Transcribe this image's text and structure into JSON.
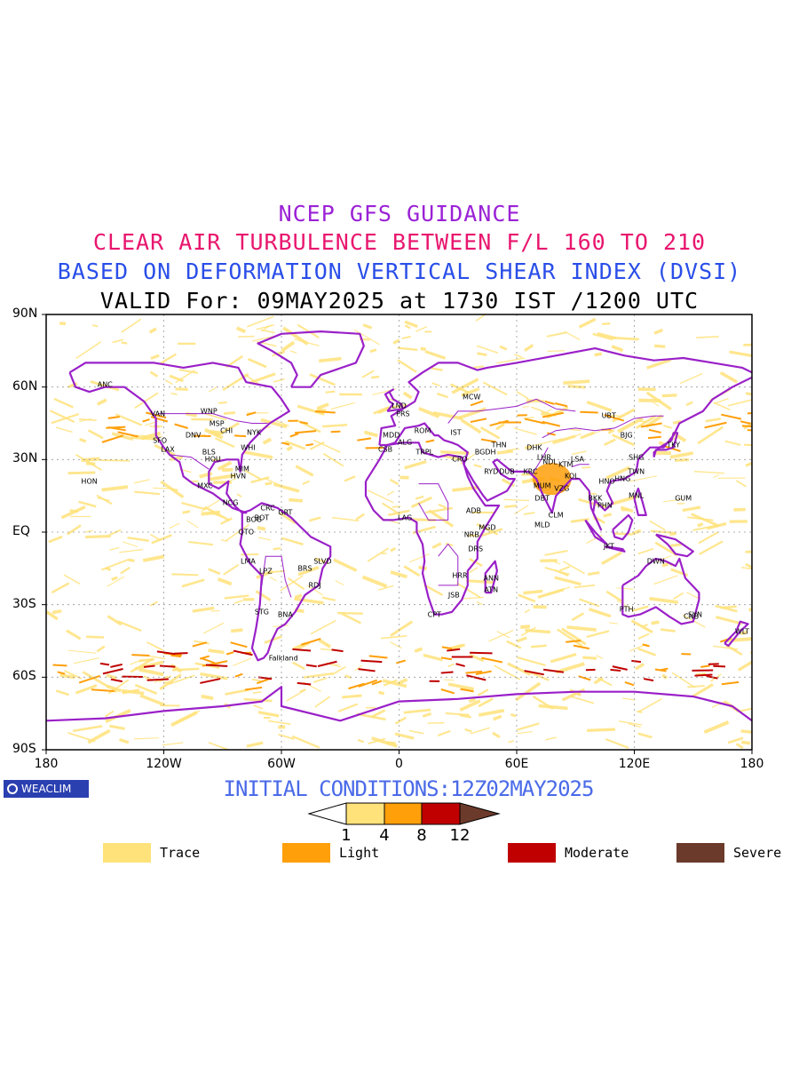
{
  "titles": {
    "line1": "NCEP GFS GUIDANCE",
    "line2": "CLEAR AIR TURBULENCE BETWEEN F/L 160 TO 210",
    "line3": "BASED ON DEFORMATION VERTICAL SHEAR INDEX (DVSI)",
    "line4": "VALID For: 09MAY2025 at 1730 IST /1200 UTC"
  },
  "colors": {
    "line1": "#9b22d6",
    "line2": "#e8166e",
    "line3": "#2a4ee8",
    "line4": "#000000",
    "init": "#4a6ae8",
    "coast": "#9a20c8",
    "trace": "#ffe27a",
    "light": "#ff9f0a",
    "moderate": "#c00000",
    "severe": "#6b3a2a"
  },
  "lat_labels": [
    "90N",
    "60N",
    "30N",
    "EQ",
    "30S",
    "60S",
    "90S"
  ],
  "lon_labels": [
    "180",
    "120W",
    "60W",
    "0",
    "60E",
    "120E",
    "180"
  ],
  "initial_conditions": "INITIAL CONDITIONS:12Z02MAY2025",
  "logo_text": "WEACLIM",
  "colorbar_ticks": [
    "1",
    "4",
    "8",
    "12"
  ],
  "legend": [
    {
      "label": "Trace",
      "color": "#ffe27a"
    },
    {
      "label": "Light",
      "color": "#ff9f0a"
    },
    {
      "label": "Moderate",
      "color": "#c00000"
    },
    {
      "label": "Severe",
      "color": "#6b3a2a"
    }
  ],
  "cities": [
    {
      "name": "ANC",
      "lon": -150,
      "lat": 61
    },
    {
      "name": "VAN",
      "lon": -123,
      "lat": 49
    },
    {
      "name": "WNP",
      "lon": -97,
      "lat": 50
    },
    {
      "name": "SFO",
      "lon": -122,
      "lat": 38
    },
    {
      "name": "LAX",
      "lon": -118,
      "lat": 34
    },
    {
      "name": "DNV",
      "lon": -105,
      "lat": 40
    },
    {
      "name": "CHI",
      "lon": -88,
      "lat": 42
    },
    {
      "name": "NYK",
      "lon": -74,
      "lat": 41
    },
    {
      "name": "MSP",
      "lon": -93,
      "lat": 45
    },
    {
      "name": "BLS",
      "lon": -97,
      "lat": 33
    },
    {
      "name": "HOU",
      "lon": -95,
      "lat": 30
    },
    {
      "name": "WHI",
      "lon": -77,
      "lat": 35
    },
    {
      "name": "MIM",
      "lon": -80,
      "lat": 26
    },
    {
      "name": "HVN",
      "lon": -82,
      "lat": 23
    },
    {
      "name": "MXC",
      "lon": -99,
      "lat": 19
    },
    {
      "name": "HON",
      "lon": -158,
      "lat": 21
    },
    {
      "name": "NCG",
      "lon": -86,
      "lat": 12
    },
    {
      "name": "CRC",
      "lon": -67,
      "lat": 10
    },
    {
      "name": "BOG",
      "lon": -74,
      "lat": 5
    },
    {
      "name": "BOT",
      "lon": -70,
      "lat": 6
    },
    {
      "name": "GRT",
      "lon": -58,
      "lat": 8
    },
    {
      "name": "QTO",
      "lon": -78,
      "lat": 0
    },
    {
      "name": "LMA",
      "lon": -77,
      "lat": -12
    },
    {
      "name": "LPZ",
      "lon": -68,
      "lat": -16
    },
    {
      "name": "BRS",
      "lon": -48,
      "lat": -15
    },
    {
      "name": "SLVD",
      "lon": -39,
      "lat": -12
    },
    {
      "name": "RDJ",
      "lon": -43,
      "lat": -22
    },
    {
      "name": "STG",
      "lon": -70,
      "lat": -33
    },
    {
      "name": "BNA",
      "lon": -58,
      "lat": -34
    },
    {
      "name": "Falkland",
      "lon": -59,
      "lat": -52
    },
    {
      "name": "LND",
      "lon": 0,
      "lat": 52
    },
    {
      "name": "PRS",
      "lon": 2,
      "lat": 49
    },
    {
      "name": "MDD",
      "lon": -4,
      "lat": 40
    },
    {
      "name": "ALG",
      "lon": 3,
      "lat": 37
    },
    {
      "name": "CSB",
      "lon": -7,
      "lat": 34
    },
    {
      "name": "ROM",
      "lon": 12,
      "lat": 42
    },
    {
      "name": "TRPL",
      "lon": 13,
      "lat": 33
    },
    {
      "name": "IST",
      "lon": 29,
      "lat": 41
    },
    {
      "name": "MCW",
      "lon": 37,
      "lat": 56
    },
    {
      "name": "CRO",
      "lon": 31,
      "lat": 30
    },
    {
      "name": "RYD",
      "lon": 47,
      "lat": 25
    },
    {
      "name": "DUB",
      "lon": 55,
      "lat": 25
    },
    {
      "name": "KRC",
      "lon": 67,
      "lat": 25
    },
    {
      "name": "THN",
      "lon": 51,
      "lat": 36
    },
    {
      "name": "BGDH",
      "lon": 44,
      "lat": 33
    },
    {
      "name": "ADB",
      "lon": 38,
      "lat": 9
    },
    {
      "name": "NRB",
      "lon": 37,
      "lat": -1
    },
    {
      "name": "DRS",
      "lon": 39,
      "lat": -7
    },
    {
      "name": "MGD",
      "lon": 45,
      "lat": 2
    },
    {
      "name": "ANN",
      "lon": 47,
      "lat": -19
    },
    {
      "name": "HRR",
      "lon": 31,
      "lat": -18
    },
    {
      "name": "ATN",
      "lon": 47,
      "lat": -24
    },
    {
      "name": "JSB",
      "lon": 28,
      "lat": -26
    },
    {
      "name": "CPT",
      "lon": 18,
      "lat": -34
    },
    {
      "name": "LAG",
      "lon": 3,
      "lat": 6
    },
    {
      "name": "DHK",
      "lon": 69,
      "lat": 35
    },
    {
      "name": "LHR",
      "lon": 74,
      "lat": 31
    },
    {
      "name": "NDL",
      "lon": 77,
      "lat": 29
    },
    {
      "name": "MUM",
      "lon": 73,
      "lat": 19
    },
    {
      "name": "DBT",
      "lon": 73,
      "lat": 14
    },
    {
      "name": "VZG",
      "lon": 83,
      "lat": 18
    },
    {
      "name": "KOL",
      "lon": 88,
      "lat": 23
    },
    {
      "name": "CLM",
      "lon": 80,
      "lat": 7
    },
    {
      "name": "MLD",
      "lon": 73,
      "lat": 3
    },
    {
      "name": "KTM",
      "lon": 85,
      "lat": 28
    },
    {
      "name": "LSA",
      "lon": 91,
      "lat": 30
    },
    {
      "name": "UBT",
      "lon": 107,
      "lat": 48
    },
    {
      "name": "BJG",
      "lon": 116,
      "lat": 40
    },
    {
      "name": "SHG",
      "lon": 121,
      "lat": 31
    },
    {
      "name": "TKY",
      "lon": 140,
      "lat": 36
    },
    {
      "name": "HNG",
      "lon": 114,
      "lat": 22
    },
    {
      "name": "TWN",
      "lon": 121,
      "lat": 25
    },
    {
      "name": "HNO",
      "lon": 106,
      "lat": 21
    },
    {
      "name": "BKK",
      "lon": 100,
      "lat": 14
    },
    {
      "name": "PHN",
      "lon": 105,
      "lat": 11
    },
    {
      "name": "MNL",
      "lon": 121,
      "lat": 15
    },
    {
      "name": "GUM",
      "lon": 145,
      "lat": 14
    },
    {
      "name": "JKT",
      "lon": 107,
      "lat": -6
    },
    {
      "name": "DWN",
      "lon": 131,
      "lat": -12
    },
    {
      "name": "PTH",
      "lon": 116,
      "lat": -32
    },
    {
      "name": "SYN",
      "lon": 151,
      "lat": -34
    },
    {
      "name": "CNB",
      "lon": 149,
      "lat": -35
    },
    {
      "name": "WLT",
      "lon": 175,
      "lat": -41
    }
  ]
}
